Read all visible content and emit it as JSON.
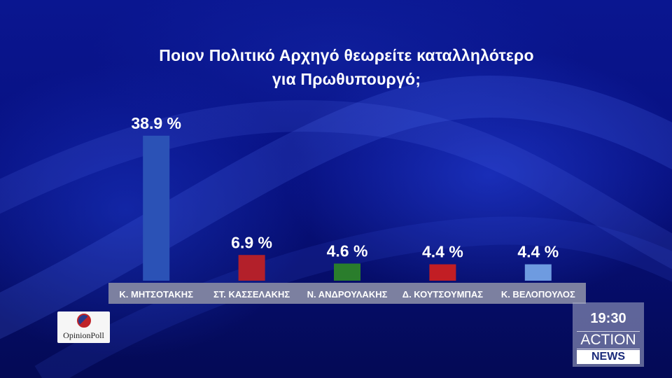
{
  "chart_data": {
    "type": "bar",
    "title": "Ποιον Πολιτικό Αρχηγό θεωρείτε καταλληλότερο",
    "subtitle": "για Πρωθυπουργό;",
    "categories": [
      "Κ. ΜΗΤΣΟΤΑΚΗΣ",
      "ΣΤ. ΚΑΣΣΕΛΑΚΗΣ",
      "Ν. ΑΝΔΡΟΥΛΑΚΗΣ",
      "Δ. ΚΟΥΤΣΟΥΜΠΑΣ",
      "Κ. ΒΕΛΟΠΟΥΛΟΣ"
    ],
    "values": [
      38.9,
      6.9,
      4.6,
      4.4,
      4.4
    ],
    "value_labels": [
      "38.9 %",
      "6.9 %",
      "4.6 %",
      "4.4 %",
      "4.4 %"
    ],
    "colors": [
      "#2b52b6",
      "#b3202a",
      "#2a7d2c",
      "#c21e24",
      "#6e9be0"
    ],
    "ylim": [
      0,
      40
    ],
    "grid": false,
    "legend": "none"
  },
  "branding": {
    "logo_text": "OpinionPoll",
    "time": "19:30",
    "channel": "ACTION",
    "news": "NEWS"
  }
}
